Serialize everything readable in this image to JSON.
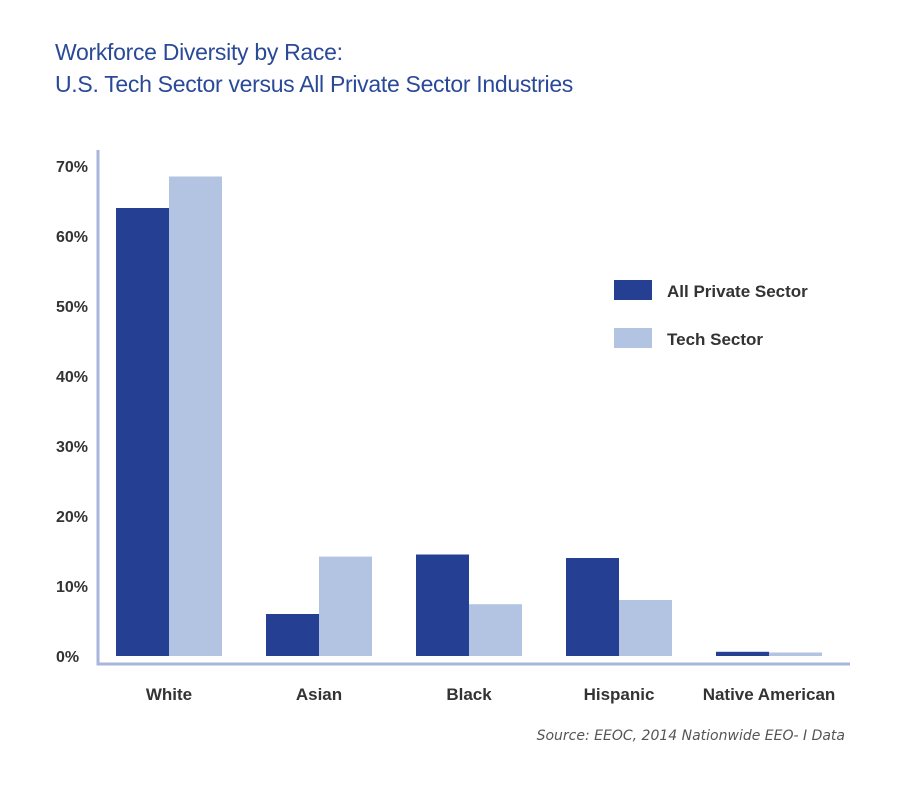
{
  "title_line1": "Workforce Diversity by Race:",
  "title_line2": "U.S. Tech Sector versus All Private Sector Industries",
  "source": "Source: EEOC, 2014 Nationwide EEO- I Data",
  "colors": {
    "title": "#2a4a98",
    "all_private_sector": "#253f92",
    "tech_sector": "#b3c3e2",
    "axis": "#a7b6db"
  },
  "chart_data": {
    "type": "bar",
    "categories": [
      "White",
      "Asian",
      "Black",
      "Hispanic",
      "Native American"
    ],
    "series": [
      {
        "name": "All Private Sector",
        "values": [
          64,
          6,
          14.5,
          14,
          0.6
        ]
      },
      {
        "name": "Tech Sector",
        "values": [
          68.5,
          14.2,
          7.4,
          8,
          0.5
        ]
      }
    ],
    "y_ticks": [
      "0%",
      "10%",
      "20%",
      "30%",
      "40%",
      "50%",
      "60%",
      "70%"
    ],
    "ylim": [
      0,
      70
    ],
    "legend_position": "right",
    "grid": false
  }
}
